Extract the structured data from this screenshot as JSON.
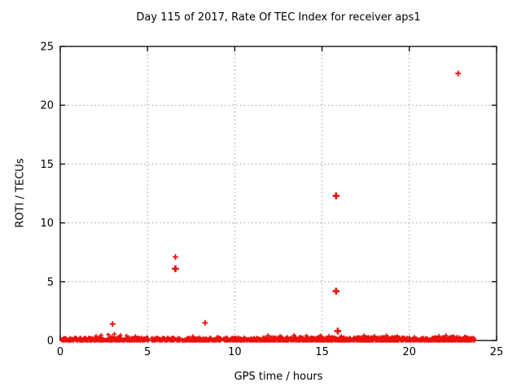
{
  "chart_data": {
    "type": "scatter",
    "title": "Day 115 of 2017, Rate Of TEC Index for receiver aps1",
    "xlabel": "GPS time / hours",
    "ylabel": "ROTI / TECUs",
    "xlim": [
      0,
      25
    ],
    "ylim": [
      0,
      25
    ],
    "xticks": [
      0,
      5,
      10,
      15,
      20,
      25
    ],
    "yticks": [
      0,
      5,
      10,
      15,
      20,
      25
    ],
    "grid": "dotted gray at interior ticks, ticks mirrored on all four sides",
    "legend": "none",
    "marker": "plus",
    "marker_color": "#e8110d",
    "outliers": [
      {
        "x": 3.0,
        "y": 1.4,
        "bold": false
      },
      {
        "x": 6.6,
        "y": 7.1,
        "bold": false
      },
      {
        "x": 6.6,
        "y": 6.1,
        "bold": true
      },
      {
        "x": 8.3,
        "y": 1.5,
        "bold": false
      },
      {
        "x": 15.8,
        "y": 12.3,
        "bold": true
      },
      {
        "x": 15.8,
        "y": 4.2,
        "bold": true
      },
      {
        "x": 15.9,
        "y": 0.8,
        "bold": true
      },
      {
        "x": 22.8,
        "y": 22.7,
        "bold": false
      }
    ],
    "baseline_band": {
      "description": "dense quasi-continuous band of + markers hugging ROTI=0 for the whole day",
      "x_start": 0.05,
      "x_end": 23.78,
      "y_min": 0,
      "y_max": 0.26,
      "gaps": [
        [
          5.05,
          5.2
        ],
        [
          9.2,
          9.35
        ]
      ],
      "point_count": 1500,
      "dense_regions": [
        [
          11.5,
          16.4
        ],
        [
          17.0,
          19.6
        ],
        [
          21.4,
          23.3
        ]
      ],
      "dense_extra_per_region": 140,
      "bumps": [
        {
          "x": 2.05,
          "y": 0.38
        },
        {
          "x": 2.35,
          "y": 0.45
        },
        {
          "x": 2.75,
          "y": 0.5
        },
        {
          "x": 3.1,
          "y": 0.55
        },
        {
          "x": 3.45,
          "y": 0.45
        },
        {
          "x": 3.8,
          "y": 0.4
        },
        {
          "x": 4.3,
          "y": 0.35
        },
        {
          "x": 7.6,
          "y": 0.35
        },
        {
          "x": 9.0,
          "y": 0.3
        },
        {
          "x": 11.9,
          "y": 0.42
        },
        {
          "x": 12.6,
          "y": 0.38
        },
        {
          "x": 13.4,
          "y": 0.45
        },
        {
          "x": 14.1,
          "y": 0.4
        },
        {
          "x": 14.9,
          "y": 0.42
        },
        {
          "x": 15.4,
          "y": 0.38
        },
        {
          "x": 16.1,
          "y": 0.35
        },
        {
          "x": 17.4,
          "y": 0.42
        },
        {
          "x": 18.0,
          "y": 0.38
        },
        {
          "x": 18.7,
          "y": 0.42
        },
        {
          "x": 19.3,
          "y": 0.36
        },
        {
          "x": 20.3,
          "y": 0.3
        },
        {
          "x": 21.7,
          "y": 0.38
        },
        {
          "x": 22.1,
          "y": 0.42
        },
        {
          "x": 22.5,
          "y": 0.36
        },
        {
          "x": 23.2,
          "y": 0.32
        }
      ]
    },
    "colors": {
      "frame": "#000000",
      "grid": "#9a9a9a",
      "text": "#000000",
      "points": "#e8110d"
    }
  }
}
